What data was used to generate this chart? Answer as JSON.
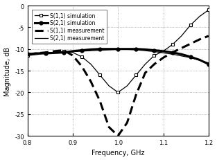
{
  "title": "",
  "xlabel": "Frequency, GHz",
  "ylabel": "Magnitude, dB",
  "xlim": [
    0.8,
    1.2
  ],
  "ylim": [
    -30,
    0
  ],
  "yticks": [
    0,
    -5,
    -10,
    -15,
    -20,
    -25,
    -30
  ],
  "xticks": [
    0.8,
    0.9,
    1.0,
    1.1,
    1.2
  ],
  "legend": [
    "S(1,1) simulation",
    "S(2,1) simulation",
    "S(1,1) measurement",
    "S(2,1) measurement"
  ],
  "freq": [
    0.8,
    0.82,
    0.84,
    0.86,
    0.88,
    0.9,
    0.92,
    0.94,
    0.96,
    0.98,
    1.0,
    1.02,
    1.04,
    1.06,
    1.08,
    1.1,
    1.12,
    1.14,
    1.16,
    1.18,
    1.2
  ],
  "s11_sim": [
    -11.5,
    -11.3,
    -11.0,
    -10.8,
    -10.6,
    -10.8,
    -11.8,
    -13.5,
    -16.0,
    -18.5,
    -20.0,
    -18.5,
    -16.0,
    -13.5,
    -11.5,
    -10.5,
    -9.0,
    -7.0,
    -4.5,
    -2.5,
    -1.0
  ],
  "s21_sim": [
    -11.2,
    -11.0,
    -11.0,
    -10.9,
    -10.8,
    -10.5,
    -10.3,
    -10.1,
    -10.0,
    -10.0,
    -10.0,
    -10.0,
    -10.0,
    -10.1,
    -10.3,
    -10.5,
    -10.8,
    -11.2,
    -11.8,
    -12.5,
    -13.5
  ],
  "s11_meas": [
    -11.3,
    -11.0,
    -10.8,
    -10.5,
    -10.3,
    -11.5,
    -14.0,
    -17.5,
    -22.0,
    -28.0,
    -30.0,
    -27.0,
    -20.5,
    -15.5,
    -13.5,
    -12.0,
    -10.8,
    -9.8,
    -8.8,
    -7.8,
    -7.0
  ],
  "s21_meas": [
    -11.0,
    -11.0,
    -10.9,
    -10.8,
    -10.7,
    -10.6,
    -10.5,
    -10.4,
    -10.3,
    -10.2,
    -10.1,
    -10.1,
    -10.2,
    -10.4,
    -10.6,
    -10.9,
    -11.2,
    -11.6,
    -12.0,
    -12.6,
    -13.2
  ]
}
